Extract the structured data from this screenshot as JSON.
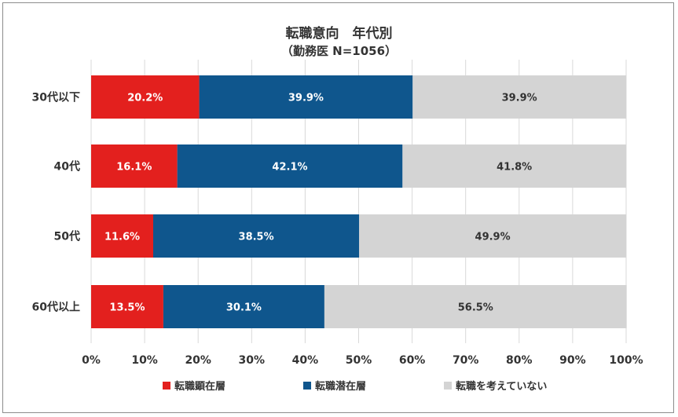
{
  "chart_data": {
    "type": "bar",
    "orientation": "horizontal",
    "stacked": "percent",
    "title": "転職意向　年代別",
    "subtitle": "（勤務医 N=1056）",
    "categories": [
      "30代以下",
      "40代",
      "50代",
      "60代以上"
    ],
    "series": [
      {
        "name": "転職顕在層",
        "color": "#e3201e",
        "values": [
          20.2,
          16.1,
          11.6,
          13.5
        ]
      },
      {
        "name": "転職潜在層",
        "color": "#0f568d",
        "values": [
          39.9,
          42.1,
          38.5,
          30.1
        ]
      },
      {
        "name": "転職を考えていない",
        "color": "#d4d4d4",
        "values": [
          39.9,
          41.8,
          49.9,
          56.5
        ]
      }
    ],
    "data_labels": [
      [
        "20.2%",
        "16.1%",
        "11.6%",
        "13.5%"
      ],
      [
        "39.9%",
        "42.1%",
        "38.5%",
        "30.1%"
      ],
      [
        "39.9%",
        "41.8%",
        "49.9%",
        "56.5%"
      ]
    ],
    "xlim": [
      0,
      100
    ],
    "xticks": [
      "0%",
      "10%",
      "20%",
      "30%",
      "40%",
      "50%",
      "60%",
      "70%",
      "80%",
      "90%",
      "100%"
    ],
    "grid": "vertical",
    "legend": "bottom"
  }
}
